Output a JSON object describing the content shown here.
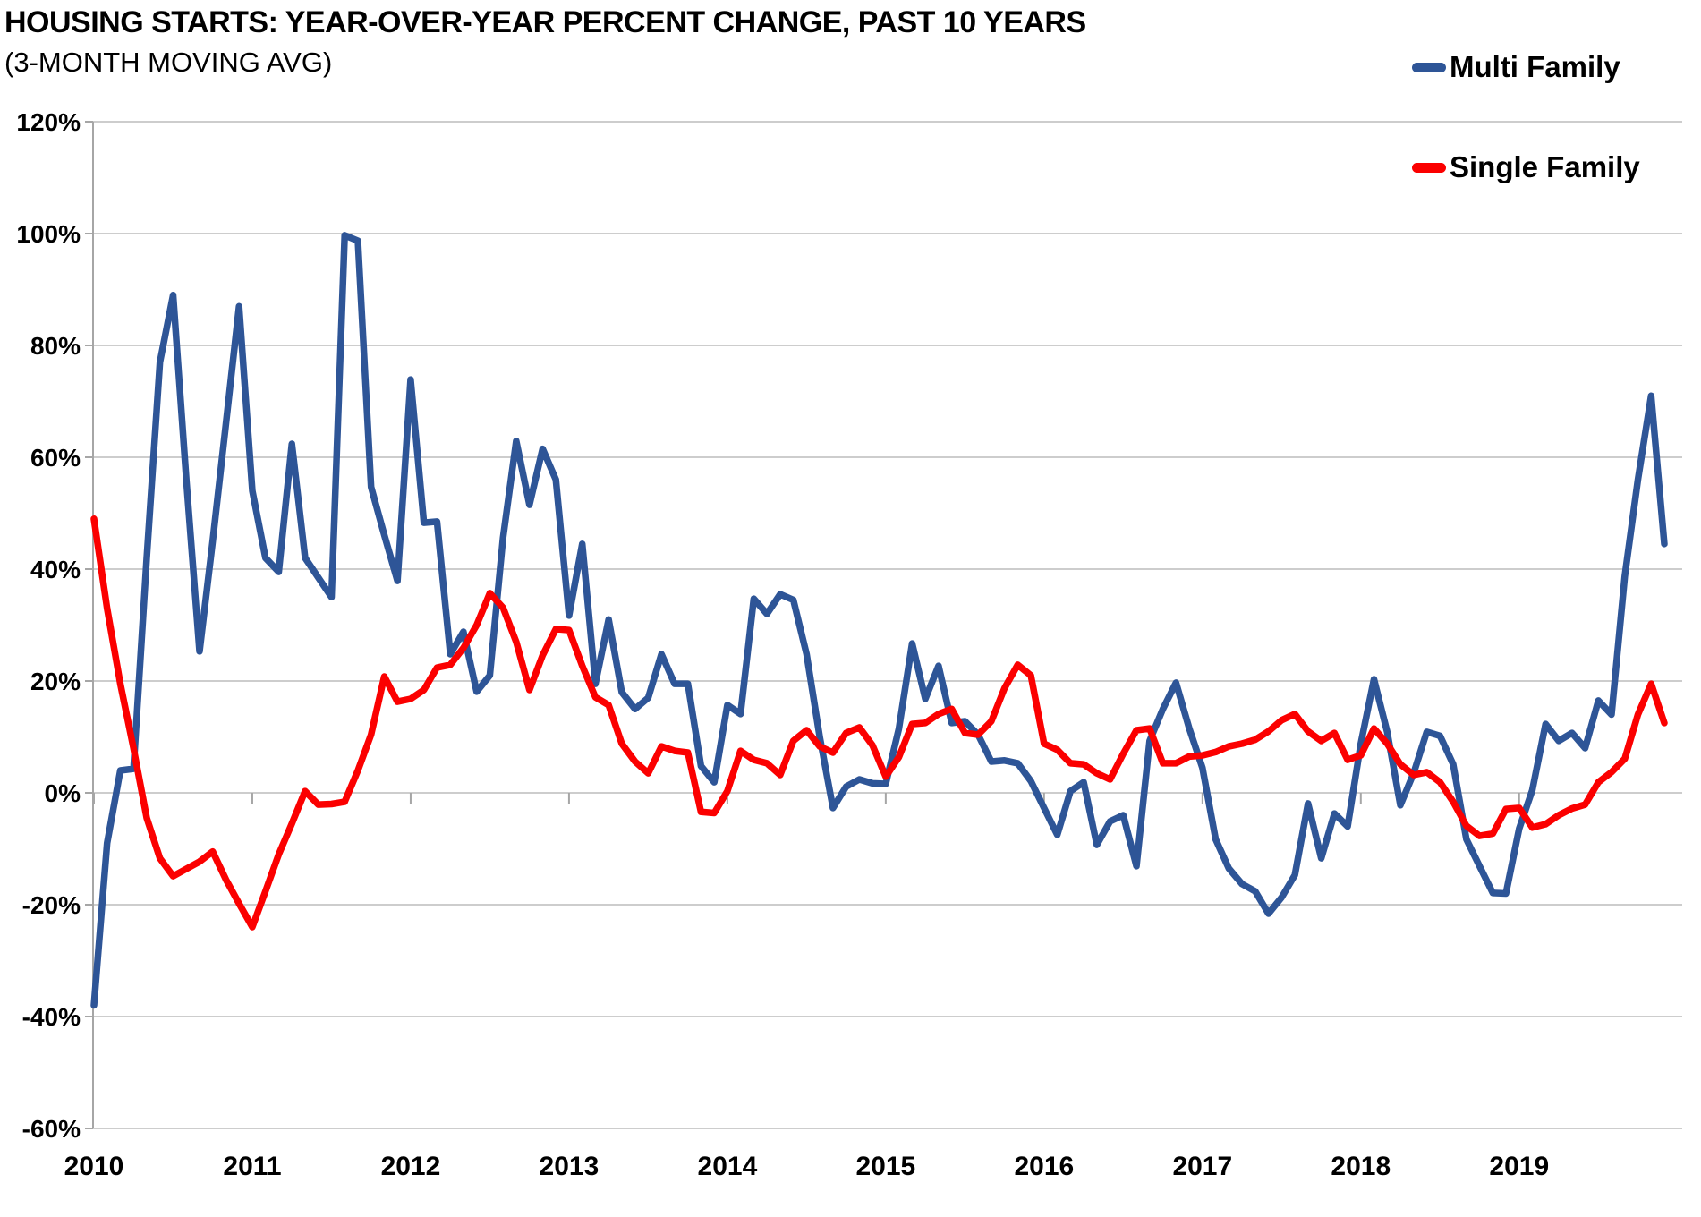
{
  "header": {
    "title": "HOUSING STARTS: YEAR-OVER-YEAR PERCENT CHANGE, PAST 10 YEARS",
    "subtitle": "(3-MONTH MOVING AVG)"
  },
  "chart_data": {
    "type": "line",
    "title": "HOUSING STARTS: YEAR-OVER-YEAR PERCENT CHANGE, PAST 10 YEARS",
    "subtitle": "(3-MONTH MOVING AVG)",
    "x_unit": "month",
    "x_start": "2010-01",
    "x_end": "2019-12",
    "x_tick_labels": [
      "2010",
      "2011",
      "2012",
      "2013",
      "2014",
      "2015",
      "2016",
      "2017",
      "2018",
      "2019"
    ],
    "y_tick_labels": [
      "120%",
      "100%",
      "80%",
      "60%",
      "40%",
      "20%",
      "0%",
      "-20%",
      "-40%",
      "-60%"
    ],
    "y_tick_values": [
      120,
      100,
      80,
      60,
      40,
      20,
      0,
      -20,
      -40,
      -60
    ],
    "ylim": [
      -60,
      120
    ],
    "grid": "horizontal-only",
    "legend_position": "top-right",
    "colors": {
      "multi_family": "#2e5597",
      "single_family": "#fb0000",
      "gridline": "#cdcdcd",
      "axis": "#a6a6a6",
      "text": "#000000"
    },
    "series": [
      {
        "name": "Multi Family",
        "color": "#2e5597",
        "values": [
          -38,
          -9,
          4,
          4.3,
          42,
          77,
          89,
          56,
          25.3,
          45,
          66,
          87,
          54,
          42,
          39.5,
          62.4,
          42,
          38.5,
          35,
          99.7,
          98.7,
          54.7,
          46.1,
          37.9,
          73.9,
          48.3,
          48.5,
          24.8,
          28.8,
          18.1,
          21,
          45.6,
          62.9,
          51.5,
          61.5,
          56,
          31.7,
          44.5,
          19.5,
          31,
          18,
          15,
          17,
          24.8,
          19.5,
          19.5,
          4.8,
          1.9,
          15.7,
          14.1,
          34.7,
          32,
          35.5,
          34.5,
          24.8,
          10,
          -2.7,
          1.1,
          2.4,
          1.7,
          1.6,
          11.5,
          26.7,
          16.8,
          22.7,
          12.5,
          12.8,
          10.4,
          5.6,
          5.8,
          5.3,
          2.1,
          -2.7,
          -7.5,
          0.3,
          1.9,
          -9.3,
          -5.1,
          -4,
          -13.1,
          9.3,
          15,
          19.7,
          11.5,
          4.5,
          -8.3,
          -13.5,
          -16.3,
          -17.6,
          -21.6,
          -18.7,
          -14.7,
          -1.9,
          -11.7,
          -3.7,
          -6,
          8.8,
          20.3,
          10.9,
          -2.2,
          3.5,
          10.9,
          10.2,
          5.1,
          -8.3,
          -13.1,
          -17.9,
          -18,
          -6.4,
          0.5,
          12.3,
          9.3,
          10.7,
          8,
          16.5,
          14,
          38.7,
          56,
          71,
          44.5
        ]
      },
      {
        "name": "Single Family",
        "color": "#fb0000",
        "values": [
          49,
          33,
          19.5,
          8,
          -4.5,
          -11.7,
          -14.9,
          -13.6,
          -12.3,
          -10.5,
          -15.5,
          -19.8,
          -24,
          -17.6,
          -11,
          -5.5,
          0.3,
          -2.1,
          -2,
          -1.6,
          4,
          10.4,
          20.8,
          16.3,
          16.8,
          18.4,
          22.4,
          22.9,
          25.9,
          30,
          35.7,
          33.1,
          27,
          18.4,
          24.6,
          29.3,
          29.1,
          22.7,
          17.1,
          15.7,
          8.8,
          5.6,
          3.5,
          8.3,
          7.5,
          7.2,
          -3.4,
          -3.6,
          0.3,
          7.5,
          5.9,
          5.3,
          3.2,
          9.3,
          11.2,
          8.3,
          7.2,
          10.7,
          11.7,
          8.5,
          2.9,
          6.4,
          12.3,
          12.5,
          14.1,
          15,
          10.7,
          10.4,
          12.8,
          18.7,
          22.9,
          21,
          8.8,
          7.7,
          5.3,
          5.1,
          3.5,
          2.4,
          7,
          11.2,
          11.5,
          5.3,
          5.3,
          6.5,
          6.7,
          7.3,
          8.3,
          8.8,
          9.5,
          11,
          13,
          14.1,
          11,
          9.3,
          10.7,
          5.9,
          6.7,
          11.5,
          8.8,
          5.1,
          3.2,
          3.7,
          1.9,
          -1.6,
          -5.9,
          -7.7,
          -7.3,
          -2.9,
          -2.7,
          -6.2,
          -5.6,
          -4,
          -2.8,
          -2.1,
          1.9,
          3.7,
          6.1,
          14,
          19.5,
          12.5
        ]
      }
    ]
  }
}
